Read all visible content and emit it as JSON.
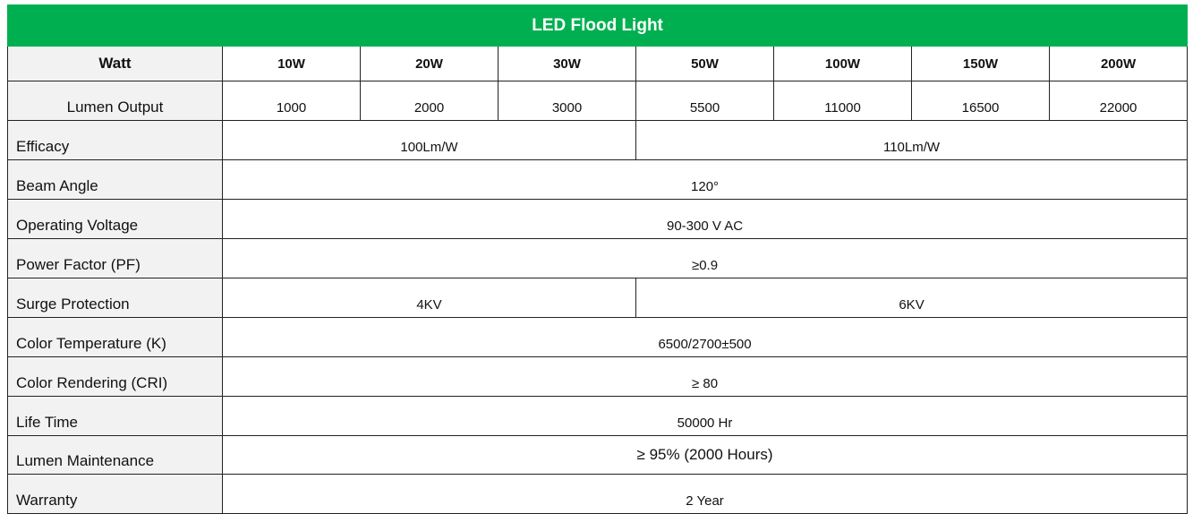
{
  "table": {
    "title": "LED Flood Light",
    "header": {
      "label": "Watt",
      "values": [
        "10W",
        "20W",
        "30W",
        "50W",
        "100W",
        "150W",
        "200W"
      ]
    },
    "rows": [
      {
        "label": "Lumen Output",
        "cells": [
          "1000",
          "2000",
          "3000",
          "5500",
          "11000",
          "16500",
          "22000"
        ]
      },
      {
        "label": "Efficacy",
        "cells": [
          "100Lm/W",
          "110Lm/W"
        ]
      },
      {
        "label": "Beam Angle",
        "cells": [
          "120°"
        ]
      },
      {
        "label": "Operating Voltage",
        "cells": [
          "90-300 V AC"
        ]
      },
      {
        "label": "Power Factor (PF)",
        "cells": [
          "≥0.9"
        ]
      },
      {
        "label": "Surge Protection",
        "cells": [
          "4KV",
          "6KV"
        ]
      },
      {
        "label": "Color Temperature (K)",
        "cells": [
          "6500/2700±500"
        ]
      },
      {
        "label": "Color Rendering (CRI)",
        "cells": [
          "≥ 80"
        ]
      },
      {
        "label": "Life Time",
        "cells": [
          "50000 Hr"
        ]
      },
      {
        "label": "Lumen Maintenance",
        "cells": [
          "≥ 95% (2000 Hours)"
        ]
      },
      {
        "label": "Warranty",
        "cells": [
          "2 Year"
        ]
      }
    ]
  }
}
